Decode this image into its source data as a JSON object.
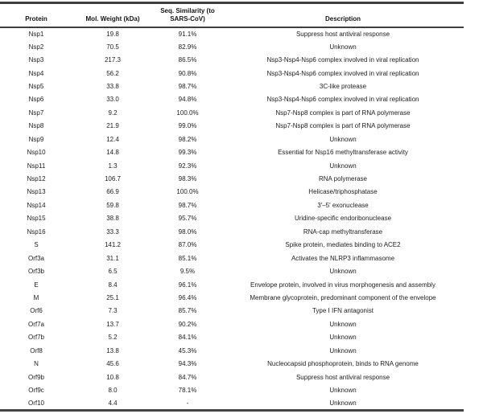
{
  "table": {
    "columns": [
      {
        "label": "Protein"
      },
      {
        "label": "Mol. Weight (kDa)"
      },
      {
        "label": "Seq. Similarity (to\nSARS-CoV)"
      },
      {
        "label": "Description"
      }
    ],
    "rows": [
      {
        "protein": "Nsp1",
        "mol_weight": "19.8",
        "similarity": "91.1%",
        "description": "Suppress host antiviral response"
      },
      {
        "protein": "Nsp2",
        "mol_weight": "70.5",
        "similarity": "82.9%",
        "description": "Unknown"
      },
      {
        "protein": "Nsp3",
        "mol_weight": "217.3",
        "similarity": "86.5%",
        "description": "Nsp3-Nsp4-Nsp6 complex involved in viral replication"
      },
      {
        "protein": "Nsp4",
        "mol_weight": "56.2",
        "similarity": "90.8%",
        "description": "Nsp3-Nsp4-Nsp6 complex involved in viral replication"
      },
      {
        "protein": "Nsp5",
        "mol_weight": "33.8",
        "similarity": "98.7%",
        "description": "3C-like protease"
      },
      {
        "protein": "Nsp6",
        "mol_weight": "33.0",
        "similarity": "94.8%",
        "description": "Nsp3-Nsp4-Nsp6 complex involved in viral replication"
      },
      {
        "protein": "Nsp7",
        "mol_weight": "9.2",
        "similarity": "100.0%",
        "description": "Nsp7-Nsp8 complex is part of RNA polymerase"
      },
      {
        "protein": "Nsp8",
        "mol_weight": "21.9",
        "similarity": "99.0%",
        "description": "Nsp7-Nsp8 complex is part of RNA polymerase"
      },
      {
        "protein": "Nsp9",
        "mol_weight": "12.4",
        "similarity": "98.2%",
        "description": "Unknown"
      },
      {
        "protein": "Nsp10",
        "mol_weight": "14.8",
        "similarity": "99.3%",
        "description": "Essential for Nsp16 methyltransferase activity"
      },
      {
        "protein": "Nsp11",
        "mol_weight": "1.3",
        "similarity": "92.3%",
        "description": "Unknown"
      },
      {
        "protein": "Nsp12",
        "mol_weight": "106.7",
        "similarity": "98.3%",
        "description": "RNA polymerase"
      },
      {
        "protein": "Nsp13",
        "mol_weight": "66.9",
        "similarity": "100.0%",
        "description": "Helicase/triphosphatase"
      },
      {
        "protein": "Nsp14",
        "mol_weight": "59.8",
        "similarity": "98.7%",
        "description": "3′–5′ exonuclease"
      },
      {
        "protein": "Nsp15",
        "mol_weight": "38.8",
        "similarity": "95.7%",
        "description": "Uridine-specific endoribonuclease"
      },
      {
        "protein": "Nsp16",
        "mol_weight": "33.3",
        "similarity": "98.0%",
        "description": "RNA-cap methyltransferase"
      },
      {
        "protein": "S",
        "mol_weight": "141.2",
        "similarity": "87.0%",
        "description": "Spike protein, mediates binding to ACE2"
      },
      {
        "protein": "Orf3a",
        "mol_weight": "31.1",
        "similarity": "85.1%",
        "description": "Activates the NLRP3 inflammasome"
      },
      {
        "protein": "Orf3b",
        "mol_weight": "6.5",
        "similarity": "9.5%",
        "description": "Unknown"
      },
      {
        "protein": "E",
        "mol_weight": "8.4",
        "similarity": "96.1%",
        "description": "Envelope protein, involved in virus morphogenesis and assembly"
      },
      {
        "protein": "M",
        "mol_weight": "25.1",
        "similarity": "96.4%",
        "description": "Membrane glycoprotein, predominant component of the envelope"
      },
      {
        "protein": "Orf6",
        "mol_weight": "7.3",
        "similarity": "85.7%",
        "description": "Type I IFN antagonist"
      },
      {
        "protein": "Orf7a",
        "mol_weight": "13.7",
        "similarity": "90.2%",
        "description": "Unknown"
      },
      {
        "protein": "Orf7b",
        "mol_weight": "5.2",
        "similarity": "84.1%",
        "description": "Unknown"
      },
      {
        "protein": "Orf8",
        "mol_weight": "13.8",
        "similarity": "45.3%",
        "description": "Unknown"
      },
      {
        "protein": "N",
        "mol_weight": "45.6",
        "similarity": "94.3%",
        "description": "Nucleocapsid phosphoprotein, binds to RNA genome"
      },
      {
        "protein": "Orf9b",
        "mol_weight": "10.8",
        "similarity": "84.7%",
        "description": "Suppress host antiviral response"
      },
      {
        "protein": "Orf9c",
        "mol_weight": "8.0",
        "similarity": "78.1%",
        "description": "Unknown"
      },
      {
        "protein": "Orf10",
        "mol_weight": "4.4",
        "similarity": "-",
        "description": "Unknown"
      }
    ]
  }
}
